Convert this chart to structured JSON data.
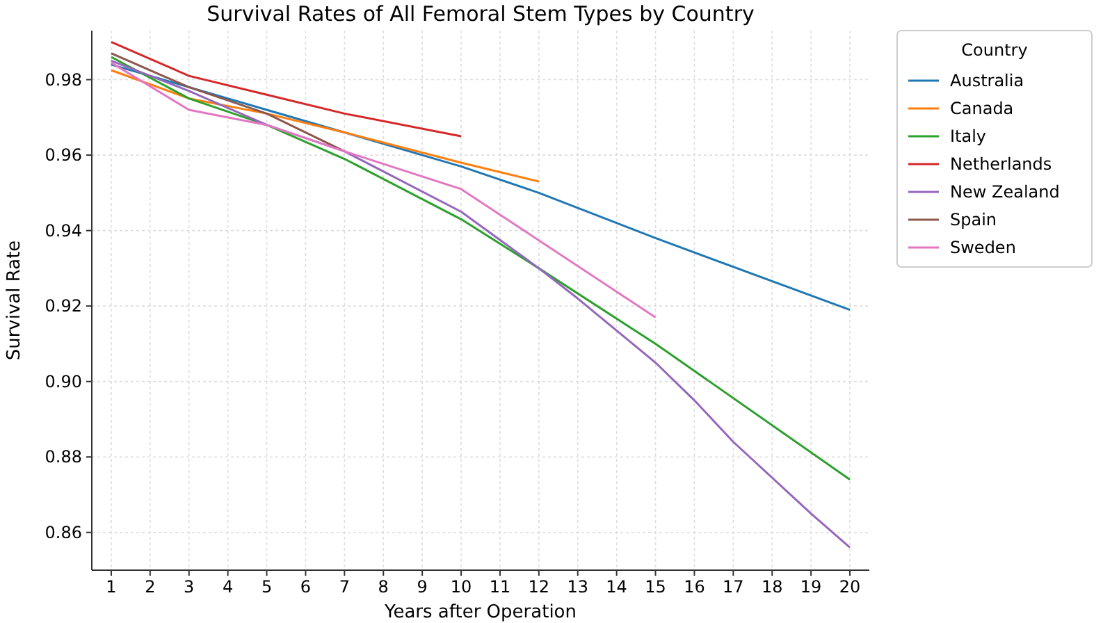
{
  "chart_data": {
    "type": "line",
    "title": "Survival Rates of All Femoral Stem Types by Country",
    "xlabel": "Years after Operation",
    "ylabel": "Survival Rate",
    "legend_title": "Country",
    "legend": "top right",
    "grid": true,
    "xlim": [
      0.5,
      20.5
    ],
    "xticks": [
      1,
      2,
      3,
      4,
      5,
      6,
      7,
      8,
      9,
      10,
      11,
      12,
      13,
      14,
      15,
      16,
      17,
      18,
      19,
      20
    ],
    "ylim": [
      0.85,
      0.993
    ],
    "yticks": [
      {
        "value": 0.86,
        "label": "0.86"
      },
      {
        "value": 0.88,
        "label": "0.88"
      },
      {
        "value": 0.9,
        "label": "0.90"
      },
      {
        "value": 0.92,
        "label": "0.92"
      },
      {
        "value": 0.94,
        "label": "0.94"
      },
      {
        "value": 0.96,
        "label": "0.96"
      },
      {
        "value": 0.98,
        "label": "0.98"
      }
    ],
    "series": [
      {
        "name": "Australia",
        "color": "#1f77b4",
        "x": [
          1,
          3,
          5,
          7,
          10,
          12,
          15,
          20
        ],
        "values": [
          0.984,
          0.978,
          0.972,
          0.966,
          0.957,
          0.95,
          0.938,
          0.919
        ]
      },
      {
        "name": "Canada",
        "color": "#ff7f0e",
        "x": [
          1,
          3,
          5,
          7,
          10,
          12
        ],
        "values": [
          0.9825,
          0.975,
          0.971,
          0.966,
          0.958,
          0.953
        ]
      },
      {
        "name": "Italy",
        "color": "#2ca02c",
        "x": [
          1,
          3,
          5,
          7,
          10,
          12,
          15,
          20
        ],
        "values": [
          0.986,
          0.975,
          0.968,
          0.959,
          0.943,
          0.93,
          0.91,
          0.874
        ]
      },
      {
        "name": "Netherlands",
        "color": "#d62728",
        "x": [
          1,
          3,
          5,
          7,
          10
        ],
        "values": [
          0.99,
          0.981,
          0.976,
          0.971,
          0.965
        ]
      },
      {
        "name": "New Zealand",
        "color": "#9467bd",
        "x": [
          1,
          3,
          5,
          7,
          10,
          12,
          13,
          15,
          16,
          17,
          19,
          20
        ],
        "values": [
          0.985,
          0.977,
          0.968,
          0.961,
          0.945,
          0.93,
          0.922,
          0.905,
          0.895,
          0.884,
          0.865,
          0.856
        ]
      },
      {
        "name": "Spain",
        "color": "#8c564b",
        "x": [
          1,
          3,
          5,
          7
        ],
        "values": [
          0.987,
          0.978,
          0.971,
          0.961
        ]
      },
      {
        "name": "Sweden",
        "color": "#e377c2",
        "x": [
          1,
          3,
          5,
          7,
          10,
          15
        ],
        "values": [
          0.9845,
          0.972,
          0.968,
          0.961,
          0.951,
          0.917
        ]
      }
    ]
  }
}
